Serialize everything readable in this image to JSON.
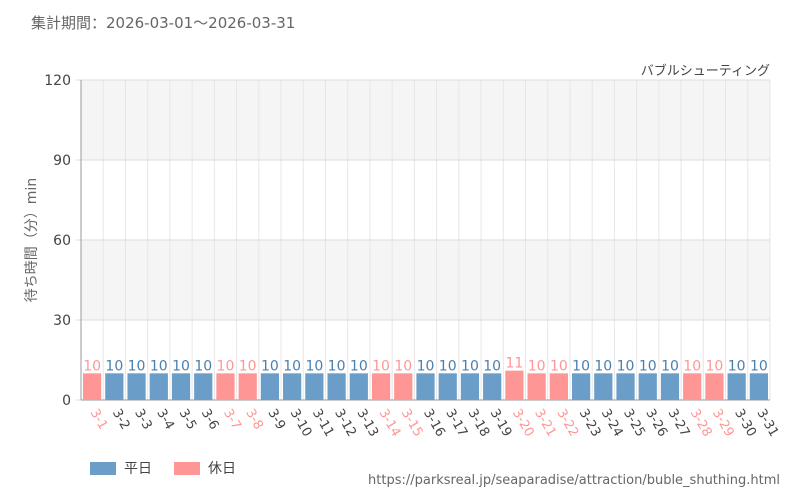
{
  "period_text": "集計期間：2026-03-01～2026-03-31",
  "attraction_name": "バブルシューティング",
  "source_url": "https://parksreal.jp/seaparadise/attraction/buble_shuthing.html",
  "legend": [
    {
      "label": "平日",
      "color": "#6a9ec8"
    },
    {
      "label": "休日",
      "color": "#ff9696"
    }
  ],
  "chart_data": {
    "type": "bar",
    "ylabel": "待ち時間（分）min",
    "ylim": [
      0,
      120
    ],
    "yticks": [
      0,
      30,
      60,
      90,
      120
    ],
    "grid": true,
    "categories": [
      "3-1",
      "3-2",
      "3-3",
      "3-4",
      "3-5",
      "3-6",
      "3-7",
      "3-8",
      "3-9",
      "3-10",
      "3-11",
      "3-12",
      "3-13",
      "3-14",
      "3-15",
      "3-16",
      "3-17",
      "3-18",
      "3-19",
      "3-20",
      "3-21",
      "3-22",
      "3-23",
      "3-24",
      "3-25",
      "3-26",
      "3-27",
      "3-28",
      "3-29",
      "3-30",
      "3-31"
    ],
    "values": [
      10,
      10,
      10,
      10,
      10,
      10,
      10,
      10,
      10,
      10,
      10,
      10,
      10,
      10,
      10,
      10,
      10,
      10,
      10,
      11,
      10,
      10,
      10,
      10,
      10,
      10,
      10,
      10,
      10,
      10,
      10
    ],
    "holiday": [
      true,
      false,
      false,
      false,
      false,
      false,
      true,
      true,
      false,
      false,
      false,
      false,
      false,
      true,
      true,
      false,
      false,
      false,
      false,
      true,
      true,
      true,
      false,
      false,
      false,
      false,
      false,
      true,
      true,
      false,
      false
    ],
    "colors": {
      "weekday": "#6a9ec8",
      "holiday": "#ff9696",
      "weekday_text": "#444444"
    }
  }
}
